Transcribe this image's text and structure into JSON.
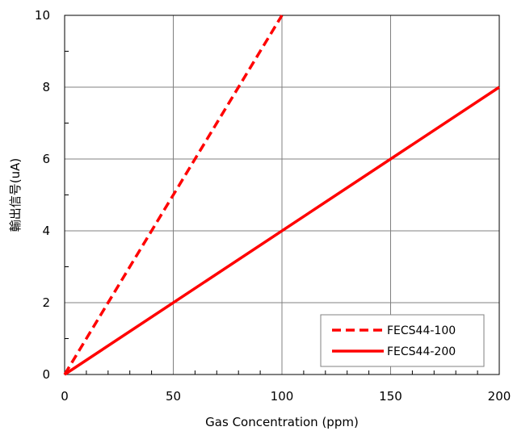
{
  "chart_data": {
    "type": "line",
    "title": "",
    "xlabel": "Gas Concentration (ppm)",
    "ylabel": "輸出信号(uA)",
    "xlim": [
      0,
      200
    ],
    "ylim": [
      0,
      10
    ],
    "xticks": [
      0,
      50,
      100,
      150,
      200
    ],
    "yticks": [
      0,
      2,
      4,
      6,
      8,
      10
    ],
    "grid": true,
    "legend_position": "bottom-right",
    "series": [
      {
        "name": "FECS44-100",
        "style": "dashed",
        "color": "#ff0000",
        "x": [
          0,
          100
        ],
        "y": [
          0,
          10
        ]
      },
      {
        "name": "FECS44-200",
        "style": "solid",
        "color": "#ff0000",
        "x": [
          0,
          200
        ],
        "y": [
          0,
          8
        ]
      }
    ]
  }
}
